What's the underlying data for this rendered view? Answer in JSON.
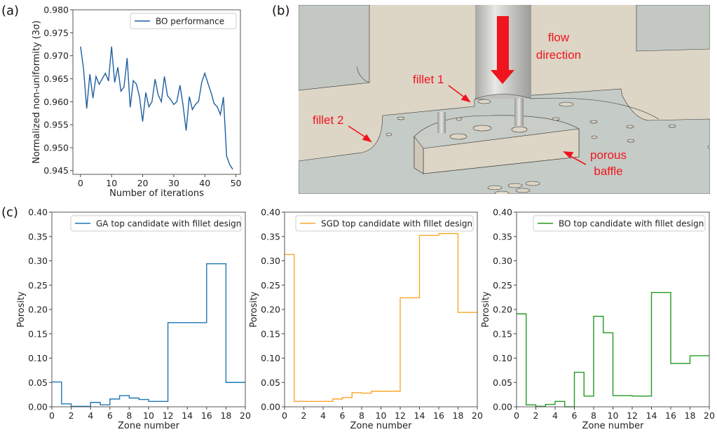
{
  "panel_labels": {
    "a": "(a)",
    "b": "(b)",
    "c": "(c)"
  },
  "render_annotations": {
    "flow_1": "flow",
    "flow_2": "direction",
    "fillet_1": "fillet 1",
    "fillet_2": "fillet 2",
    "porous_1": "porous",
    "porous_2": "baffle",
    "annotation_color": "#f0141e"
  },
  "chart_data": [
    {
      "type": "line",
      "xlabel": "Number of iterations",
      "ylabel": "Normalized non-uniformity (3σ)",
      "xlim": [
        -2.45,
        51.45
      ],
      "ylim": [
        0.9442,
        0.98
      ],
      "xticks": [
        "0",
        "10",
        "20",
        "30",
        "40",
        "50"
      ],
      "yticks": [
        "0.945",
        "0.950",
        "0.955",
        "0.960",
        "0.965",
        "0.970",
        "0.975",
        "0.980"
      ],
      "grid": false,
      "legend": "top-right",
      "series": [
        {
          "name": "BO performance",
          "color": "#1f5fa0",
          "x": [
            0,
            1,
            2,
            3,
            4,
            5,
            6,
            7,
            8,
            9,
            10,
            11,
            12,
            13,
            14,
            15,
            16,
            17,
            18,
            19,
            20,
            21,
            22,
            23,
            24,
            25,
            26,
            27,
            28,
            29,
            30,
            31,
            32,
            33,
            34,
            35,
            36,
            37,
            38,
            39,
            40,
            41,
            42,
            43,
            44,
            45,
            46,
            47,
            48,
            49
          ],
          "y": [
            0.972,
            0.967,
            0.9585,
            0.966,
            0.9608,
            0.9655,
            0.9638,
            0.965,
            0.9662,
            0.9645,
            0.972,
            0.9642,
            0.9675,
            0.9623,
            0.9632,
            0.9695,
            0.9588,
            0.9646,
            0.9638,
            0.961,
            0.9557,
            0.962,
            0.9589,
            0.96,
            0.9649,
            0.9615,
            0.96,
            0.9655,
            0.9613,
            0.9605,
            0.9594,
            0.96,
            0.9636,
            0.9592,
            0.9537,
            0.9611,
            0.9583,
            0.9594,
            0.9601,
            0.9642,
            0.9662,
            0.964,
            0.962,
            0.9596,
            0.9589,
            0.9572,
            0.961,
            0.9482,
            0.9463,
            0.9453
          ]
        }
      ]
    },
    {
      "type": "line",
      "step": "post",
      "xlabel": "Zone number",
      "ylabel": "Porosity",
      "xlim": [
        0,
        20
      ],
      "ylim": [
        0,
        0.4
      ],
      "xticks": [
        "0",
        "2",
        "4",
        "6",
        "8",
        "10",
        "12",
        "14",
        "16",
        "18",
        "20"
      ],
      "yticks": [
        "0.00",
        "0.05",
        "0.10",
        "0.15",
        "0.20",
        "0.25",
        "0.30",
        "0.35",
        "0.40"
      ],
      "grid": false,
      "legend": "top-right",
      "series": [
        {
          "name": "GA top candidate with fillet design",
          "color": "#1f77b4",
          "values": [
            0.051,
            0.006,
            0.001,
            0.001,
            0.009,
            0.004,
            0.016,
            0.023,
            0.018,
            0.015,
            0.011,
            0.011,
            0.173,
            0.173,
            0.173,
            0.173,
            0.294,
            0.294,
            0.05,
            0.05
          ]
        }
      ]
    },
    {
      "type": "line",
      "step": "post",
      "xlabel": "Zone number",
      "ylabel": "Porosity",
      "xlim": [
        0,
        20
      ],
      "ylim": [
        0,
        0.4
      ],
      "xticks": [
        "0",
        "2",
        "4",
        "6",
        "8",
        "10",
        "12",
        "14",
        "16",
        "18",
        "20"
      ],
      "yticks": [
        "0.00",
        "0.05",
        "0.10",
        "0.15",
        "0.20",
        "0.25",
        "0.30",
        "0.35",
        "0.40"
      ],
      "grid": false,
      "legend": "top-right",
      "series": [
        {
          "name": "SGD top candidate with fillet design",
          "color": "#f9a72b",
          "values": [
            0.313,
            0.011,
            0.011,
            0.011,
            0.011,
            0.016,
            0.019,
            0.029,
            0.028,
            0.032,
            0.032,
            0.032,
            0.224,
            0.224,
            0.352,
            0.352,
            0.356,
            0.356,
            0.194,
            0.194
          ]
        }
      ]
    },
    {
      "type": "line",
      "step": "post",
      "xlabel": "Zone number",
      "ylabel": "Porosity",
      "xlim": [
        0,
        20
      ],
      "ylim": [
        0,
        0.4
      ],
      "xticks": [
        "0",
        "2",
        "4",
        "6",
        "8",
        "10",
        "12",
        "14",
        "16",
        "18",
        "20"
      ],
      "yticks": [
        "0.00",
        "0.05",
        "0.10",
        "0.15",
        "0.20",
        "0.25",
        "0.30",
        "0.35",
        "0.40"
      ],
      "grid": false,
      "legend": "top-right",
      "series": [
        {
          "name": "BO top candidate with fillet design",
          "color": "#229a22",
          "values": [
            0.191,
            0.004,
            0.001,
            0.005,
            0.011,
            0.0,
            0.071,
            0.022,
            0.186,
            0.152,
            0.023,
            0.023,
            0.022,
            0.022,
            0.235,
            0.235,
            0.089,
            0.089,
            0.105,
            0.105
          ]
        }
      ]
    }
  ]
}
